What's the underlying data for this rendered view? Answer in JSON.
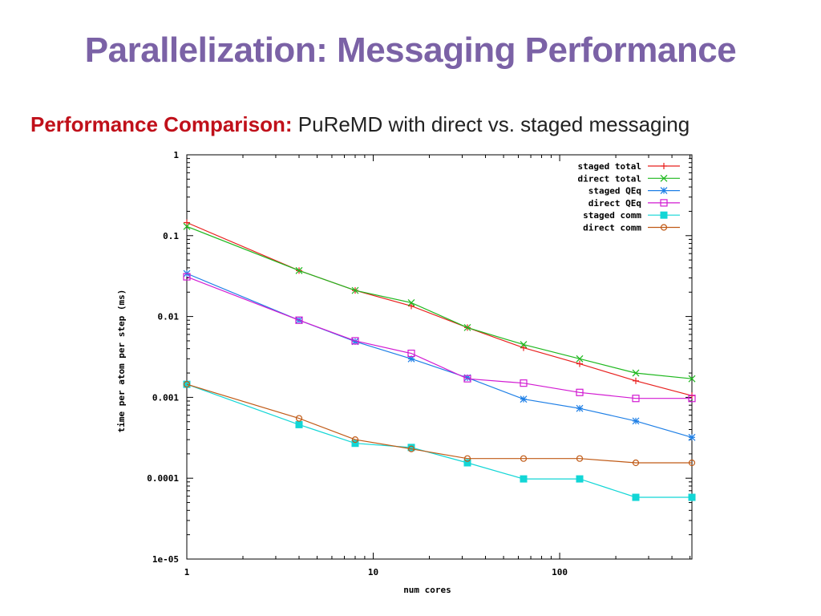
{
  "slide": {
    "title": "Parallelization: Messaging Performance",
    "subtitle_lead": "Performance Comparison:",
    "subtitle_rest": "PuReMD with direct vs. staged messaging"
  },
  "chart_data": {
    "type": "line",
    "x_scale": "log",
    "y_scale": "log",
    "xlabel": "num cores",
    "ylabel": "time per atom per step (ms)",
    "xlim": [
      1,
      512
    ],
    "ylim": [
      1e-05,
      1
    ],
    "x_ticks": [
      {
        "value": 1,
        "label": "1"
      },
      {
        "value": 10,
        "label": "10"
      },
      {
        "value": 100,
        "label": "100"
      }
    ],
    "y_ticks": [
      {
        "value": 1,
        "label": "1"
      },
      {
        "value": 0.1,
        "label": "0.1"
      },
      {
        "value": 0.01,
        "label": "0.01"
      },
      {
        "value": 0.001,
        "label": "0.001"
      },
      {
        "value": 0.0001,
        "label": "0.0001"
      },
      {
        "value": 1e-05,
        "label": "1e-05"
      }
    ],
    "legend_position": "top-right",
    "x": [
      1,
      4,
      8,
      16,
      32,
      64,
      128,
      256,
      512
    ],
    "series": [
      {
        "name": "staged total",
        "color": "#e8201e",
        "marker": "plus",
        "values": [
          0.145,
          0.037,
          0.021,
          0.0135,
          0.0073,
          0.0041,
          0.0026,
          0.0016,
          0.00105
        ]
      },
      {
        "name": "direct total",
        "color": "#1fb81f",
        "marker": "cross",
        "values": [
          0.13,
          0.037,
          0.021,
          0.0148,
          0.0073,
          0.0045,
          0.003,
          0.002,
          0.0017
        ]
      },
      {
        "name": "staged QEq",
        "color": "#1e7fe6",
        "marker": "star",
        "values": [
          0.034,
          0.009,
          0.0049,
          0.003,
          0.00175,
          0.00095,
          0.00073,
          0.00051,
          0.00032
        ]
      },
      {
        "name": "direct QEq",
        "color": "#d21ad2",
        "marker": "square",
        "values": [
          0.031,
          0.009,
          0.005,
          0.0035,
          0.0017,
          0.0015,
          0.00115,
          0.00097,
          0.00097
        ]
      },
      {
        "name": "staged comm",
        "color": "#12d6d6",
        "marker": "filled-square",
        "values": [
          0.00145,
          0.00046,
          0.00027,
          0.00024,
          0.000155,
          9.8e-05,
          9.8e-05,
          5.8e-05,
          5.8e-05
        ]
      },
      {
        "name": "direct comm",
        "color": "#c05a16",
        "marker": "circle",
        "values": [
          0.00145,
          0.00055,
          0.0003,
          0.00023,
          0.000175,
          0.000175,
          0.000175,
          0.000155,
          0.000155
        ]
      }
    ]
  }
}
